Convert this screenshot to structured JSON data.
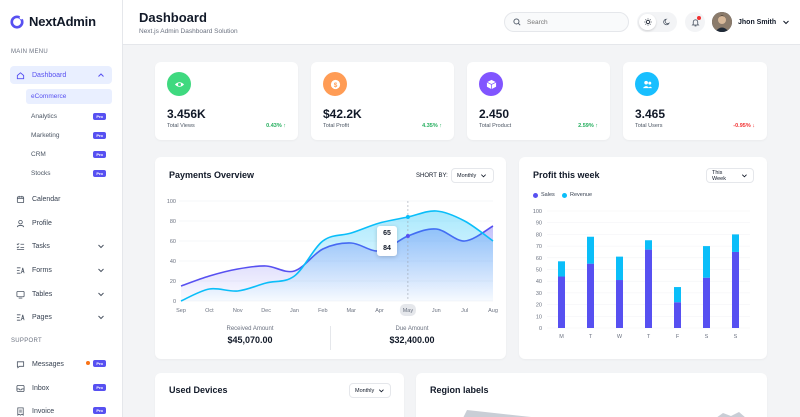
{
  "app": {
    "name": "NextAdmin"
  },
  "sidebar": {
    "main_menu_heading": "MAIN MENU",
    "support_heading": "SUPPORT",
    "dashboard": {
      "label": "Dashboard",
      "icon": "home-icon"
    },
    "sub_items": [
      {
        "label": "eCommerce",
        "pro": ""
      },
      {
        "label": "Analytics",
        "pro": "Pro"
      },
      {
        "label": "Marketing",
        "pro": "Pro"
      },
      {
        "label": "CRM",
        "pro": "Pro"
      },
      {
        "label": "Stocks",
        "pro": "Pro"
      }
    ],
    "items": [
      {
        "label": "Calendar",
        "icon": "calendar-icon"
      },
      {
        "label": "Profile",
        "icon": "user-icon"
      },
      {
        "label": "Tasks",
        "icon": "task-list-icon"
      },
      {
        "label": "Forms",
        "icon": "form-icon"
      },
      {
        "label": "Tables",
        "icon": "table-icon"
      },
      {
        "label": "Pages",
        "icon": "pages-icon"
      }
    ],
    "support_items": [
      {
        "label": "Messages",
        "icon": "chat-icon",
        "pro": "Pro"
      },
      {
        "label": "Inbox",
        "icon": "inbox-icon",
        "pro": "Pro"
      },
      {
        "label": "Invoice",
        "icon": "invoice-icon",
        "pro": "Pro"
      }
    ]
  },
  "header": {
    "title": "Dashboard",
    "subtitle": "Next.js Admin Dashboard Solution",
    "search_placeholder": "Search",
    "user_name": "Jhon Smith"
  },
  "stats": [
    {
      "value": "3.456K",
      "label": "Total Views",
      "change": "0.43%",
      "direction": "up",
      "color": "#3fd97f",
      "icon": "eye-icon"
    },
    {
      "value": "$42.2K",
      "label": "Total Profit",
      "change": "4.35%",
      "direction": "up",
      "color": "#ff9c55",
      "icon": "dollar-icon"
    },
    {
      "value": "2.450",
      "label": "Total Product",
      "change": "2.59%",
      "direction": "up",
      "color": "#8155ff",
      "icon": "box-icon"
    },
    {
      "value": "3.465",
      "label": "Total Users",
      "change": "-0.95%",
      "direction": "down",
      "color": "#18bfff",
      "icon": "users-icon"
    }
  ],
  "payments": {
    "title": "Payments Overview",
    "short_by": "SHORT BY:",
    "period": "Monthly",
    "received_label": "Received Amount",
    "received_value": "$45,070.00",
    "due_label": "Due Amount",
    "due_value": "$32,400.00",
    "tooltip_received": "65",
    "tooltip_due": "84"
  },
  "profit": {
    "title": "Profit this week",
    "period": "This Week"
  },
  "devices": {
    "title": "Used Devices",
    "period": "Monthly"
  },
  "region": {
    "title": "Region labels"
  },
  "chart_data": [
    {
      "type": "area",
      "title": "Payments Overview",
      "categories": [
        "Sep",
        "Oct",
        "Nov",
        "Dec",
        "Jan",
        "Feb",
        "Mar",
        "Apr",
        "May",
        "Jun",
        "Jul",
        "Aug"
      ],
      "ylim": [
        0,
        100
      ],
      "yticks": [
        0,
        20,
        40,
        60,
        80,
        100
      ],
      "series": [
        {
          "name": "Received Amount",
          "color": "#5750f1",
          "values": [
            15,
            25,
            32,
            35,
            30,
            52,
            58,
            50,
            65,
            72,
            60,
            75
          ]
        },
        {
          "name": "Due Amount",
          "color": "#0abef9",
          "values": [
            0,
            12,
            10,
            18,
            25,
            60,
            68,
            78,
            84,
            90,
            80,
            60
          ]
        }
      ],
      "highlight_category": "May"
    },
    {
      "type": "bar",
      "title": "Profit this week",
      "categories": [
        "M",
        "T",
        "W",
        "T",
        "F",
        "S",
        "S"
      ],
      "ylim": [
        0,
        100
      ],
      "yticks": [
        0,
        10,
        20,
        30,
        40,
        50,
        60,
        70,
        80,
        90,
        100
      ],
      "stacked": true,
      "series": [
        {
          "name": "Sales",
          "color": "#5750f1",
          "values": [
            44,
            55,
            41,
            67,
            22,
            43,
            65
          ]
        },
        {
          "name": "Revenue",
          "color": "#0abef9",
          "values": [
            13,
            23,
            20,
            8,
            13,
            27,
            15
          ]
        }
      ]
    }
  ]
}
